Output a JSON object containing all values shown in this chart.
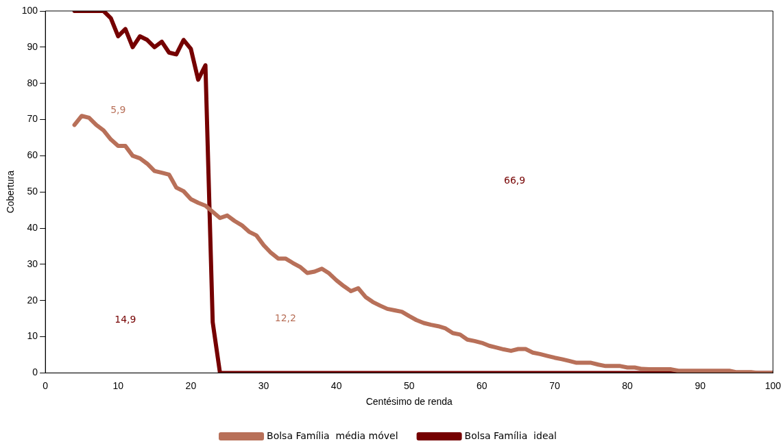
{
  "chart_data": {
    "type": "line",
    "xlabel": "Centésimo de renda",
    "ylabel": "Cobertura",
    "xlim": [
      0,
      100
    ],
    "xticks": [
      0,
      10,
      20,
      30,
      40,
      50,
      60,
      70,
      80,
      90,
      100
    ],
    "ylim": [
      0,
      100
    ],
    "yticks": [
      0,
      10,
      20,
      30,
      40,
      50,
      60,
      70,
      80,
      90,
      100
    ],
    "grid": false,
    "legend": "bottom",
    "marker": "none",
    "line_style": "solid",
    "series": [
      {
        "name": "Bolsa Família  média móvel",
        "color": "#b87059",
        "x": [
          4,
          5,
          6,
          7,
          8,
          9,
          10,
          11,
          12,
          13,
          14,
          15,
          16,
          17,
          18,
          19,
          20,
          21,
          22,
          23,
          24,
          25,
          26,
          27,
          28,
          29,
          30,
          31,
          32,
          33,
          34,
          35,
          36,
          37,
          38,
          39,
          40,
          41,
          42,
          43,
          44,
          45,
          46,
          47,
          48,
          49,
          50,
          51,
          52,
          53,
          54,
          55,
          56,
          57,
          58,
          59,
          60,
          61,
          62,
          63,
          64,
          65,
          66,
          67,
          68,
          69,
          70,
          71,
          72,
          73,
          74,
          75,
          76,
          77,
          78,
          79,
          80,
          81,
          82,
          83,
          84,
          85,
          86,
          87,
          88,
          89,
          90,
          91,
          92,
          93,
          94,
          95,
          96,
          97,
          98,
          99,
          100
        ],
        "values": [
          68.5,
          71,
          70.5,
          68.5,
          67,
          64.5,
          62.7,
          62.7,
          60,
          59.3,
          57.8,
          55.8,
          55.3,
          54.8,
          51.2,
          50.2,
          48,
          47,
          46.2,
          44.5,
          42.8,
          43.5,
          42,
          40.8,
          39,
          38,
          35.3,
          33.2,
          31.6,
          31.6,
          30.4,
          29.3,
          27.6,
          28,
          28.8,
          27.5,
          25.6,
          24,
          22.6,
          23.4,
          21,
          19.6,
          18.6,
          17.7,
          17.3,
          16.9,
          15.7,
          14.6,
          13.8,
          13.3,
          12.9,
          12.3,
          11,
          10.6,
          9.2,
          8.8,
          8.3,
          7.5,
          7,
          6.5,
          6.1,
          6.6,
          6.6,
          5.6,
          5.2,
          4.7,
          4.2,
          3.8,
          3.3,
          2.8,
          2.8,
          2.8,
          2.3,
          1.9,
          1.9,
          1.9,
          1.5,
          1.5,
          1.1,
          1,
          1,
          1,
          1,
          0.6,
          0.6,
          0.6,
          0.6,
          0.6,
          0.6,
          0.6,
          0.6,
          0.2,
          0.2,
          0.2,
          0,
          0,
          0
        ]
      },
      {
        "name": "Bolsa Família  ideal",
        "color": "#750000",
        "x": [
          4,
          5,
          6,
          7,
          8,
          9,
          10,
          11,
          12,
          13,
          14,
          15,
          16,
          17,
          18,
          19,
          20,
          21,
          22,
          23,
          24,
          100
        ],
        "values": [
          100,
          100,
          100,
          100,
          100,
          98,
          93,
          95,
          90,
          93,
          92,
          90,
          91.5,
          88.5,
          88,
          92,
          89.5,
          81,
          85,
          14,
          0,
          0
        ]
      }
    ],
    "annotations": [
      "5,9",
      "14,9",
      "12,2",
      "66,9"
    ]
  }
}
